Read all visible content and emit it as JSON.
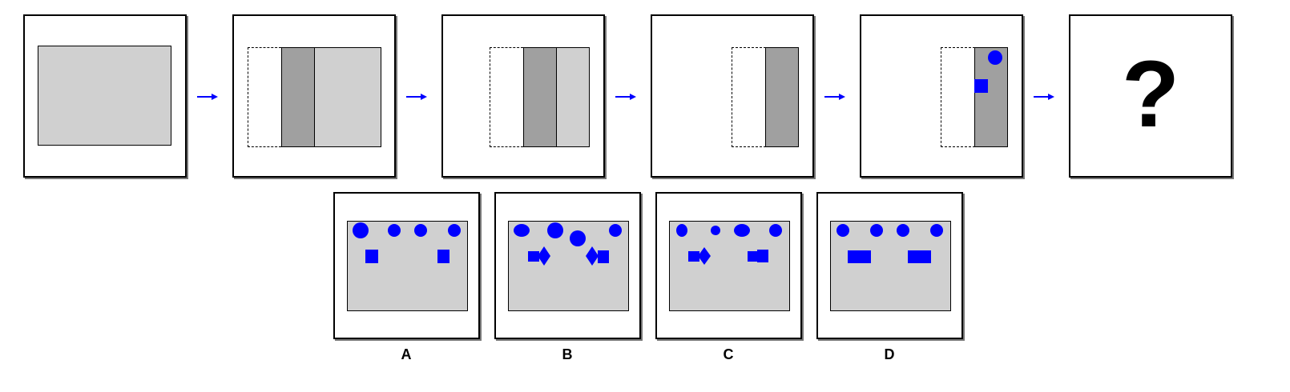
{
  "sequence": {
    "question_mark": "?"
  },
  "options": [
    {
      "label": "A"
    },
    {
      "label": "B"
    },
    {
      "label": "C"
    },
    {
      "label": "D"
    }
  ],
  "colors": {
    "shape_fill": "#0000ff",
    "panel_light": "#d0d0d0",
    "panel_dark": "#a0a0a0",
    "arrow": "#0000ff"
  }
}
